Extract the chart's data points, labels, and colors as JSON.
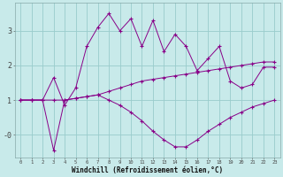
{
  "xlabel": "Windchill (Refroidissement éolien,°C)",
  "bg_color": "#c8eaea",
  "line_color": "#880088",
  "grid_color": "#99cccc",
  "x_ticks": [
    0,
    1,
    2,
    3,
    4,
    5,
    6,
    7,
    8,
    9,
    10,
    11,
    12,
    13,
    14,
    15,
    16,
    17,
    18,
    19,
    20,
    21,
    22,
    23
  ],
  "ylim": [
    -0.65,
    3.8
  ],
  "xlim": [
    -0.5,
    23.5
  ],
  "jagged_x": [
    0,
    1,
    2,
    3,
    4,
    5,
    6,
    7,
    8,
    9,
    10,
    11,
    12,
    13,
    14,
    15,
    16,
    17,
    18,
    19,
    20,
    21,
    22,
    23
  ],
  "jagged_y": [
    1.0,
    1.0,
    1.0,
    1.65,
    0.85,
    1.35,
    2.55,
    3.1,
    3.5,
    3.0,
    3.35,
    2.55,
    3.3,
    2.4,
    2.9,
    2.55,
    1.85,
    2.2,
    2.55,
    1.55,
    1.35,
    1.45,
    1.95,
    1.95
  ],
  "upper_x": [
    0,
    1,
    2,
    3,
    4,
    5,
    6,
    7,
    8,
    9,
    10,
    11,
    12,
    13,
    14,
    15,
    16,
    17,
    18,
    19,
    20,
    21,
    22,
    23
  ],
  "upper_y": [
    1.0,
    1.0,
    1.0,
    1.0,
    1.0,
    1.05,
    1.1,
    1.15,
    1.25,
    1.35,
    1.45,
    1.55,
    1.6,
    1.65,
    1.7,
    1.75,
    1.8,
    1.85,
    1.9,
    1.95,
    2.0,
    2.05,
    2.1,
    2.1
  ],
  "lower_x": [
    0,
    1,
    2,
    3,
    4,
    5,
    6,
    7,
    8,
    9,
    10,
    11,
    12,
    13,
    14,
    15,
    16,
    17,
    18,
    19,
    20,
    21,
    22,
    23
  ],
  "lower_y": [
    1.0,
    1.0,
    1.0,
    -0.45,
    1.0,
    1.05,
    1.1,
    1.15,
    1.0,
    0.85,
    0.65,
    0.4,
    0.1,
    -0.15,
    -0.35,
    -0.35,
    -0.15,
    0.1,
    0.3,
    0.5,
    0.65,
    0.8,
    0.9,
    1.0
  ],
  "yticks": [
    -0.0,
    1.0,
    2.0,
    3.0
  ],
  "ytick_labels": [
    "-0",
    "1",
    "2",
    "3"
  ]
}
